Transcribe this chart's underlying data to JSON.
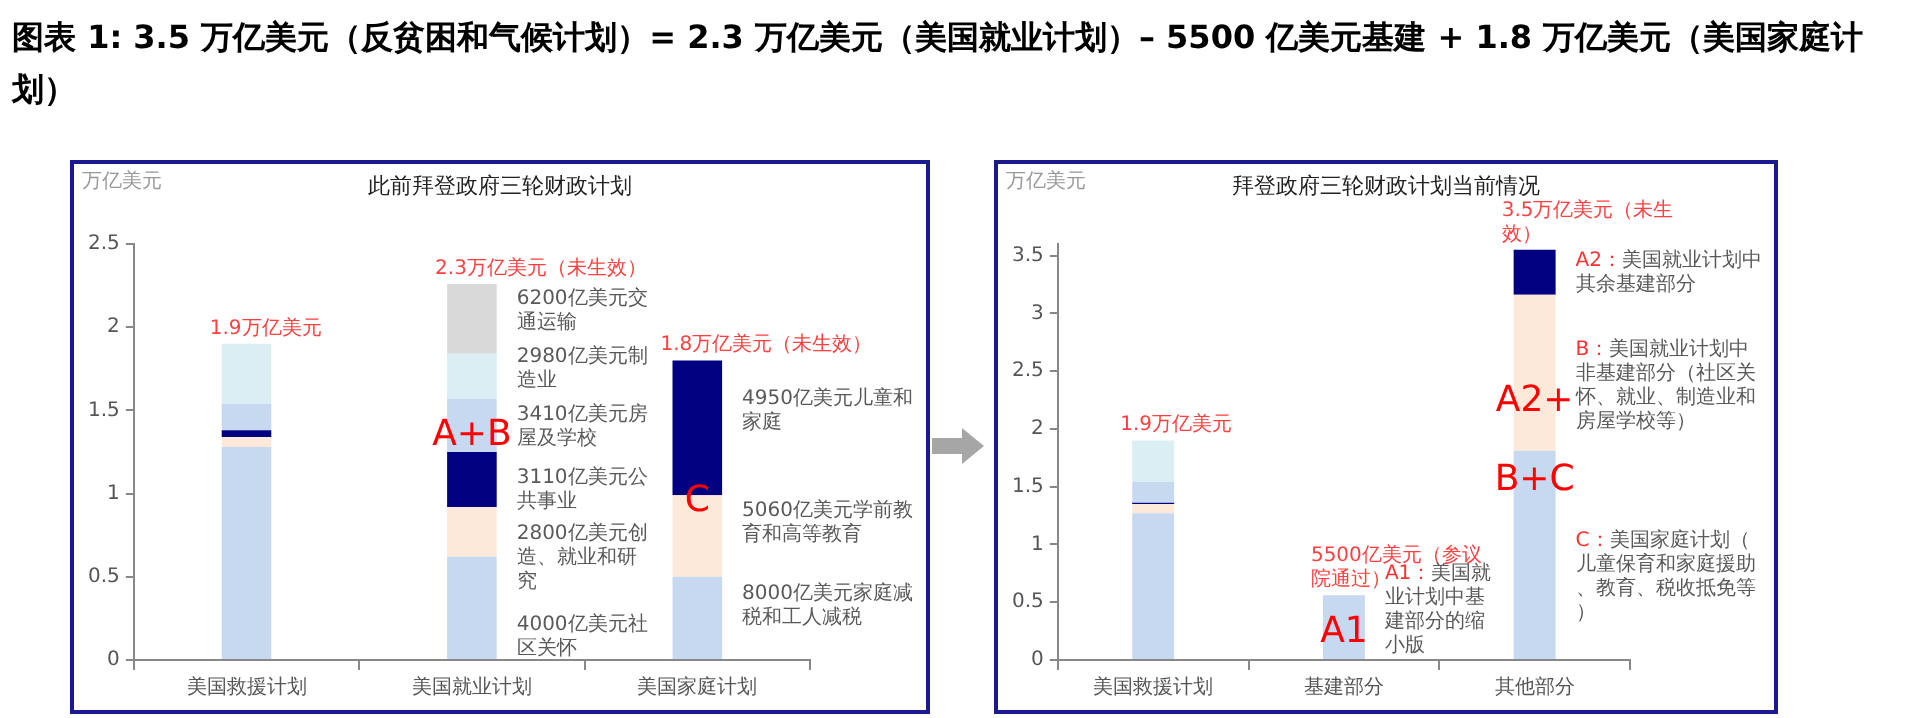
{
  "chart_data": [
    {
      "type": "bar",
      "title": "此前拜登政府三轮财政计划",
      "ylabel": "万亿美元",
      "stacked": true,
      "categories": [
        "美国救援计划",
        "美国就业计划",
        "美国家庭计划"
      ],
      "ylim": [
        0,
        2.5
      ],
      "yticks": [
        0,
        0.5,
        1,
        1.5,
        2,
        2.5
      ],
      "series": [
        {
          "color": "#c6d9f0",
          "values": [
            1.28,
            0.62,
            0.5
          ]
        },
        {
          "color": "#fde9d9",
          "values": [
            0.06,
            0.3,
            0.49
          ]
        },
        {
          "color": "#000080",
          "values": [
            0.04,
            0.33,
            0.81
          ]
        },
        {
          "color": "#c6d9f0",
          "values": [
            0.16,
            0.32,
            null
          ]
        },
        {
          "color": "#dbeef3",
          "values": [
            0.36,
            0.27,
            null
          ]
        },
        {
          "color": "#d9d9d9",
          "values": [
            null,
            0.42,
            null
          ]
        }
      ],
      "annotations": [
        "图表 1: 3.5 万亿美元（反贫困和气候计划）= 2.3 万亿美元（美国就业计划）– 5500 亿美元基建 + 1.8 万亿美元（美国家庭计划）",
        {
          "text": "1.9万亿美元",
          "x": "美国救援计划",
          "y": 1.9
        },
        {
          "text": "2.3万亿美元（未生效）",
          "x": "美国就业计划",
          "y": 2.26
        },
        {
          "text": "1.8万亿美元（未生效）",
          "x": "美国家庭计划",
          "y": 1.8
        },
        "6200亿美元交通运输",
        "2980亿美元制造业",
        "3410亿美元房屋及学校",
        "3110亿美元公共事业",
        "2800亿美元创造、就业和研究",
        "4000亿美元社区关怀",
        "4950亿美元儿童和家庭",
        "5060亿美元学前教育和高等教育",
        "8000亿美元家庭减税和工人减税",
        "A+B",
        "C"
      ]
    },
    {
      "type": "bar",
      "title": "拜登政府三轮财政计划当前情况",
      "ylabel": "万亿美元",
      "stacked": true,
      "categories": [
        "美国救援计划",
        "基建部分",
        "其他部分"
      ],
      "ylim": [
        0,
        3.6
      ],
      "yticks": [
        0,
        0.5,
        1,
        1.5,
        2,
        2.5,
        3,
        3.5
      ],
      "series": [
        {
          "color": "#c6d9f0",
          "values": [
            1.27,
            0.56,
            1.81
          ]
        },
        {
          "color": "#fde9d9",
          "values": [
            0.08,
            null,
            1.35
          ]
        },
        {
          "color": "#000080",
          "values": [
            0.01,
            null,
            0.39
          ]
        },
        {
          "color": "#c6d9f0",
          "values": [
            0.18,
            null,
            null
          ]
        },
        {
          "color": "#dbeef3",
          "values": [
            0.36,
            null,
            null
          ]
        }
      ],
      "annotations": [
        {
          "text": "1.9万亿美元",
          "x": "美国救援计划",
          "y": 1.9
        },
        {
          "text": "5500亿美元（参议院通过）",
          "x": "基建部分",
          "y": 0.56
        },
        {
          "text": "3.5万亿美元（未生效）",
          "x": "其他部分",
          "y": 3.55
        },
        "A1：美国就业计划中基建部分的缩小版",
        "A2：美国就业计划中其余基建部分",
        "B：美国就业计划中非基建部分（社区关怀、就业、制造业和房屋学校等）",
        "C：美国家庭计划（儿童保育和家庭援助、教育、税收抵免等）",
        "A1",
        "A2+",
        "B+C"
      ]
    }
  ]
}
